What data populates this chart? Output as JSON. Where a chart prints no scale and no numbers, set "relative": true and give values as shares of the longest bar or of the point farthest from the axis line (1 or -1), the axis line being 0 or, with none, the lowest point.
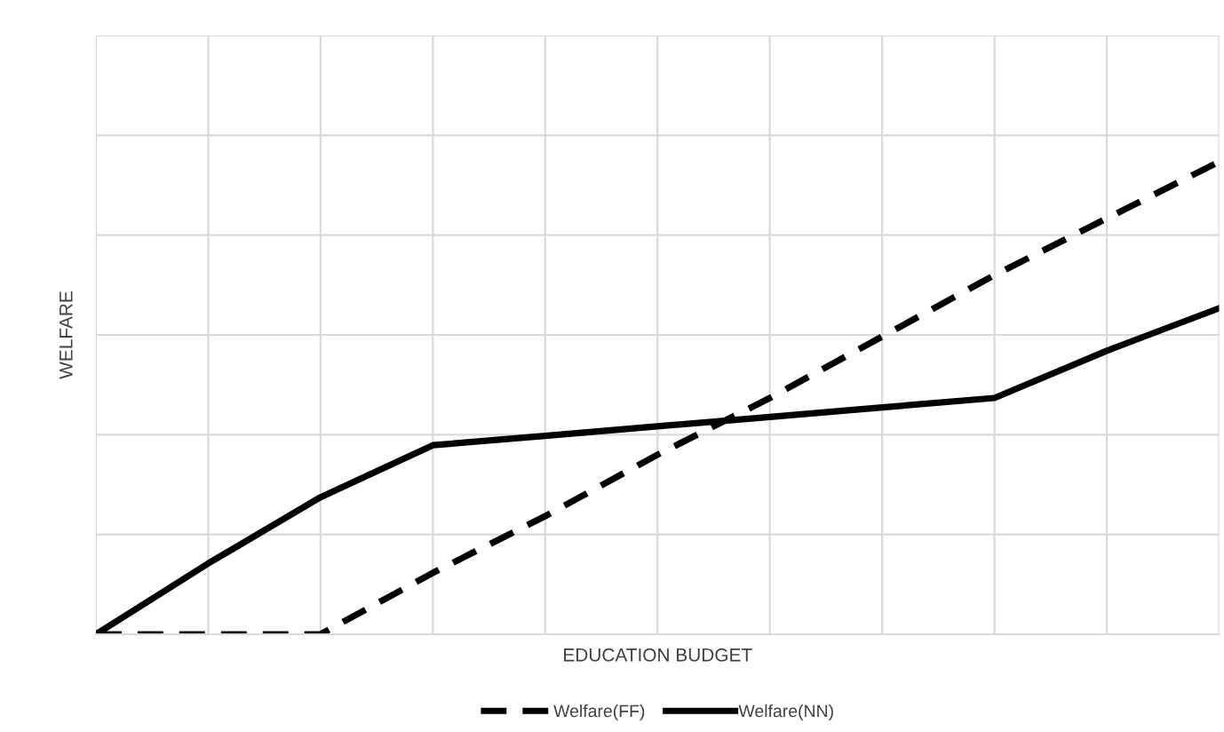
{
  "chart_data": {
    "type": "line",
    "relative": true,
    "xlabel": "EDUCATION BUDGET",
    "ylabel": "WELFARE",
    "categories": [
      null,
      null,
      null,
      null,
      null,
      null,
      null,
      null,
      null,
      null,
      null
    ],
    "series": [
      {
        "name": "Welfare(FF)",
        "color": "#000000",
        "line_style": "dashed",
        "values": [
          0,
          0,
          0,
          0.13,
          0.25,
          0.38,
          0.5,
          0.63,
          0.76,
          0.88,
          1.0
        ]
      },
      {
        "name": "Welfare(NN)",
        "color": "#000000",
        "line_style": "solid",
        "values": [
          0,
          0.15,
          0.29,
          0.4,
          0.42,
          0.44,
          0.46,
          0.48,
          0.5,
          0.6,
          0.69
        ]
      }
    ],
    "grid": true,
    "legend": "bottom",
    "marker": "none"
  }
}
